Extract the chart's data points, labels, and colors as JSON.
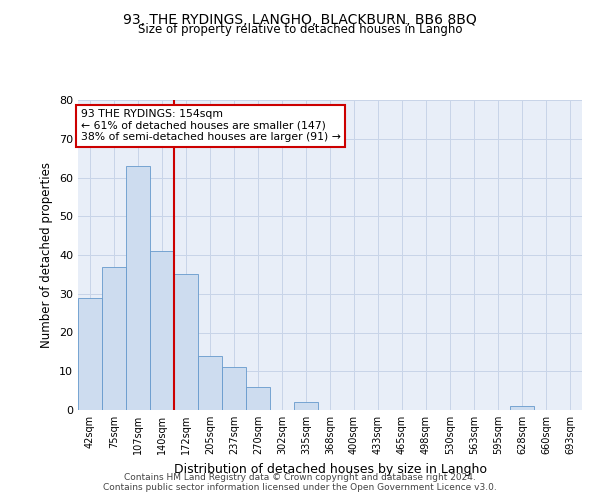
{
  "title": "93, THE RYDINGS, LANGHO, BLACKBURN, BB6 8BQ",
  "subtitle": "Size of property relative to detached houses in Langho",
  "xlabel": "Distribution of detached houses by size in Langho",
  "ylabel": "Number of detached properties",
  "categories": [
    "42sqm",
    "75sqm",
    "107sqm",
    "140sqm",
    "172sqm",
    "205sqm",
    "237sqm",
    "270sqm",
    "302sqm",
    "335sqm",
    "368sqm",
    "400sqm",
    "433sqm",
    "465sqm",
    "498sqm",
    "530sqm",
    "563sqm",
    "595sqm",
    "628sqm",
    "660sqm",
    "693sqm"
  ],
  "values": [
    29,
    37,
    63,
    41,
    35,
    14,
    11,
    6,
    0,
    2,
    0,
    0,
    0,
    0,
    0,
    0,
    0,
    0,
    1,
    0,
    0
  ],
  "bar_color": "#cddcef",
  "bar_edge_color": "#6699cc",
  "red_line_x": 3.5,
  "ylim": [
    0,
    80
  ],
  "yticks": [
    0,
    10,
    20,
    30,
    40,
    50,
    60,
    70,
    80
  ],
  "annotation_box_text": "93 THE RYDINGS: 154sqm\n← 61% of detached houses are smaller (147)\n38% of semi-detached houses are larger (91) →",
  "annotation_box_facecolor": "#ffffff",
  "annotation_box_edgecolor": "#cc0000",
  "grid_color": "#c8d4e8",
  "background_color": "#e8eef8",
  "plot_bg_color": "#e8eef8",
  "footer_line1": "Contains HM Land Registry data © Crown copyright and database right 2024.",
  "footer_line2": "Contains public sector information licensed under the Open Government Licence v3.0."
}
